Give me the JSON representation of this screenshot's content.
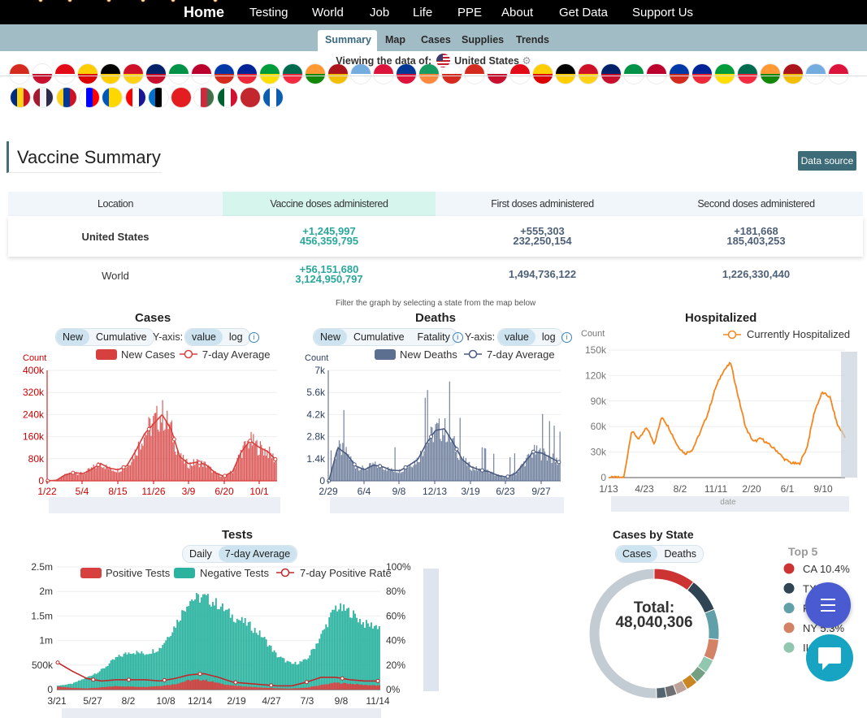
{
  "nav": {
    "home": "Home",
    "items": [
      "Testing",
      "World",
      "Job",
      "Life",
      "PPE",
      "About",
      "Get Data",
      "Support Us"
    ]
  },
  "subnav": {
    "tabs": [
      "Summary",
      "Map",
      "Cases",
      "Supplies",
      "Trends"
    ],
    "active": "Summary"
  },
  "viewing": {
    "label": "Viewing the data of:",
    "country": "United States"
  },
  "vaccine": {
    "title": "Vaccine Summary",
    "data_source": "Data source",
    "headers": [
      "Location",
      "Vaccine doses administered",
      "First doses administered",
      "Second doses administered"
    ],
    "rows": [
      {
        "location": "United States",
        "doses_delta": "+1,245,997",
        "doses": "456,359,795",
        "first_delta": "+555,303",
        "first": "232,250,154",
        "second_delta": "+181,668",
        "second": "185,403,253"
      },
      {
        "location": "World",
        "doses_delta": "+56,151,680",
        "doses": "3,124,950,797",
        "first": "1,494,736,122",
        "second": "1,226,330,440"
      }
    ]
  },
  "filter_note": "Filter the graph by selecting a state from the map below",
  "cases": {
    "title": "Cases",
    "modes": [
      "New",
      "Cumulative"
    ],
    "yaxis_label": "Y-axis:",
    "scales": [
      "value",
      "log"
    ]
  },
  "deaths": {
    "title": "Deaths",
    "modes": [
      "New",
      "Cumulative",
      "Fatality"
    ],
    "yaxis_label": "Y-axis:",
    "scales": [
      "value",
      "log"
    ]
  },
  "hosp": {
    "title": "Hospitalized"
  },
  "tests": {
    "title": "Tests",
    "modes": [
      "Daily",
      "7-day Average"
    ]
  },
  "by_state": {
    "title": "Cases by State",
    "modes": [
      "Cases",
      "Deaths"
    ],
    "top5_label": "Top 5",
    "total_label": "Total:",
    "total": "48,040,306"
  },
  "colors": {
    "cases": "#d6403e",
    "deaths": "#5d6f91",
    "hosp": "#f4861f",
    "tests_neg": "#2bb3a0",
    "teal": "#2aa79b",
    "nav_bg": "#000000",
    "subnav_bg": "#a2bcc5"
  },
  "chart_data": [
    {
      "type": "bar",
      "title": "Cases",
      "ylabel": "Count",
      "ylim": [
        0,
        400000
      ],
      "yticks": [
        "0",
        "80k",
        "160k",
        "240k",
        "320k",
        "400k"
      ],
      "x_ticks": [
        "1/22",
        "5/4",
        "8/15",
        "11/26",
        "3/9",
        "6/20",
        "10/1"
      ],
      "series": [
        {
          "name": "New Cases",
          "values": [
            0,
            2000,
            22000,
            32000,
            26000,
            45000,
            66000,
            45000,
            40000,
            55000,
            110000,
            175000,
            215000,
            250000,
            195000,
            90000,
            60000,
            70000,
            60000,
            30000,
            16000,
            35000,
            110000,
            150000,
            125000,
            110000,
            75000
          ]
        },
        {
          "name": "7-day Average",
          "values": [
            0,
            2000,
            22000,
            30000,
            26000,
            42000,
            63000,
            46000,
            40000,
            55000,
            108000,
            170000,
            205000,
            240000,
            188000,
            88000,
            62000,
            68000,
            58000,
            30000,
            16000,
            33000,
            105000,
            145000,
            122000,
            106000,
            74000
          ]
        }
      ]
    },
    {
      "type": "bar",
      "title": "Deaths",
      "ylabel": "Count",
      "ylim": [
        0,
        7000
      ],
      "yticks": [
        "0",
        "1.4k",
        "2.8k",
        "4.2k",
        "5.6k",
        "7k"
      ],
      "x_ticks": [
        "2/29",
        "6/4",
        "9/8",
        "12/13",
        "3/19",
        "6/23",
        "9/27"
      ],
      "series": [
        {
          "name": "New Deaths",
          "values": [
            0,
            2200,
            1800,
            1000,
            750,
            1050,
            950,
            700,
            650,
            1000,
            1400,
            2500,
            3300,
            3400,
            2500,
            1400,
            900,
            700,
            600,
            350,
            250,
            500,
            1200,
            1900,
            1800,
            1500,
            1200
          ]
        },
        {
          "name": "7-day Average",
          "values": [
            0,
            2100,
            1700,
            950,
            700,
            1000,
            900,
            680,
            640,
            980,
            1350,
            2400,
            3200,
            3300,
            2400,
            1350,
            880,
            690,
            580,
            340,
            240,
            480,
            1150,
            1850,
            1750,
            1450,
            1150
          ]
        }
      ]
    },
    {
      "type": "line",
      "title": "Hospitalized",
      "ylabel": "Count",
      "xlabel": "date",
      "ylim": [
        0,
        150000
      ],
      "yticks": [
        "0",
        "30k",
        "60k",
        "90k",
        "120k",
        "150k"
      ],
      "x_ticks": [
        "1/13",
        "4/23",
        "8/2",
        "11/11",
        "2/20",
        "6/1",
        "9/10"
      ],
      "series": [
        {
          "name": "Currently Hospitalized",
          "values": [
            0,
            0,
            0,
            55000,
            45000,
            59000,
            40000,
            72000,
            57000,
            38000,
            28000,
            33000,
            53000,
            75000,
            105000,
            125000,
            135000,
            95000,
            58000,
            42000,
            46000,
            39000,
            32000,
            22000,
            17000,
            16000,
            35000,
            78000,
            100000,
            95000,
            62000,
            48000
          ]
        }
      ]
    },
    {
      "type": "bar",
      "title": "Tests",
      "ylim": [
        0,
        2500000
      ],
      "yticks": [
        "0",
        "500k",
        "1m",
        "1.5m",
        "2m",
        "2.5m"
      ],
      "y2ticks": [
        "0%",
        "20%",
        "40%",
        "60%",
        "80%",
        "100%"
      ],
      "x_ticks": [
        "3/21",
        "5/27",
        "8/2",
        "10/8",
        "12/14",
        "2/19",
        "4/27",
        "7/3",
        "9/8",
        "11/14"
      ],
      "series": [
        {
          "name": "Positive Tests",
          "values": [
            60000,
            35000,
            25000,
            45000,
            70000,
            60000,
            55000,
            75000,
            110000,
            190000,
            200000,
            130000,
            80000,
            60000,
            40000,
            25000,
            20000,
            40000,
            90000,
            140000,
            120000,
            95000,
            80000
          ]
        },
        {
          "name": "Negative Tests",
          "values": [
            80000,
            120000,
            250000,
            400000,
            650000,
            780000,
            740000,
            850000,
            1300000,
            1850000,
            1900000,
            1750000,
            1500000,
            1350000,
            1100000,
            700000,
            520000,
            600000,
            1100000,
            1700000,
            1600000,
            1350000,
            1300000
          ]
        },
        {
          "name": "7-day Positive Rate",
          "values": [
            22,
            15,
            9,
            7,
            8,
            8,
            8,
            7,
            9,
            12,
            13,
            10,
            6,
            5,
            4,
            3,
            3,
            6,
            10,
            10,
            8,
            7,
            7
          ]
        }
      ]
    },
    {
      "type": "pie",
      "title": "Cases by State",
      "legend_title": "Top 5",
      "total": 48040306,
      "top5": [
        {
          "label": "CA",
          "value": 10.4,
          "display": "10.4%",
          "color": "#cc3333"
        },
        {
          "label": "TX",
          "value": 8.5,
          "display": "",
          "color": "#2f4554"
        },
        {
          "label": "FL",
          "value": 7.6,
          "display": "",
          "color": "#61a0a8"
        },
        {
          "label": "NY",
          "value": 5.3,
          "display": "5.3%",
          "color": "#d48265"
        },
        {
          "label": "IL",
          "value": 3.5,
          "display": "",
          "color": "#91c7ae"
        }
      ],
      "rest": [
        {
          "value": 3.2,
          "color": "#749f83"
        },
        {
          "value": 3.0,
          "color": "#ca8622"
        },
        {
          "value": 2.8,
          "color": "#bda29a"
        },
        {
          "value": 2.6,
          "color": "#6e7074"
        },
        {
          "value": 2.5,
          "color": "#546570"
        },
        {
          "value": 50.6,
          "color": "#c4ccd3"
        }
      ]
    }
  ]
}
